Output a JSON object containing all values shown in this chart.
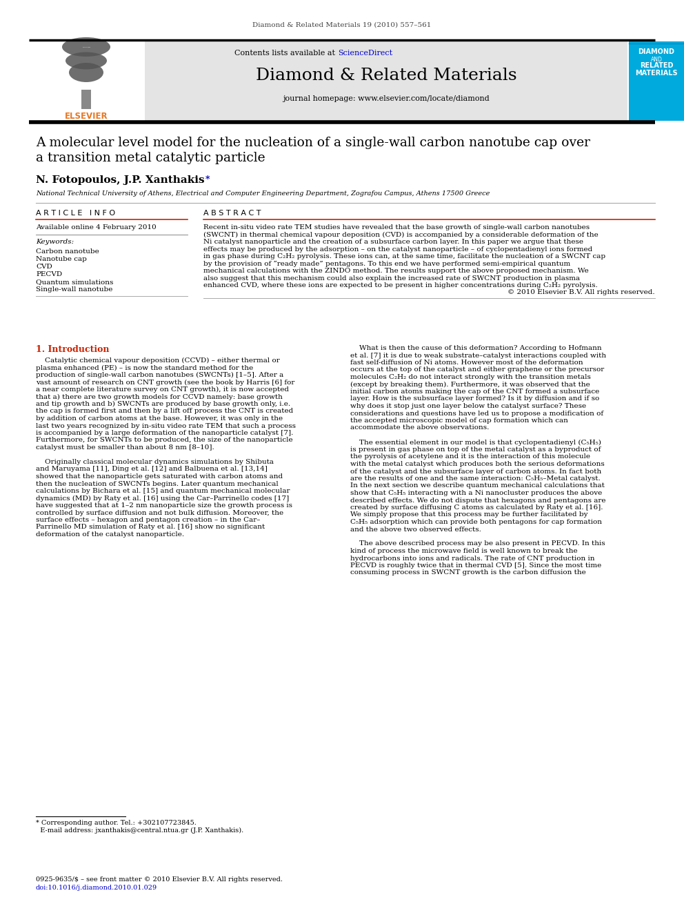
{
  "page_header": "Diamond & Related Materials 19 (2010) 557–561",
  "journal_name": "Diamond & Related Materials",
  "journal_url": "journal homepage: www.elsevier.com/locate/diamond",
  "contents_line": "Contents lists available at ScienceDirect",
  "paper_title_line1": "A molecular level model for the nucleation of a single-wall carbon nanotube cap over",
  "paper_title_line2": "a transition metal catalytic particle",
  "authors_main": "N. Fotopoulos, J.P. Xanthakis ",
  "authors_star": "*",
  "affiliation": "National Technical University of Athens, Electrical and Computer Engineering Department, Zografou Campus, Athens 17500 Greece",
  "article_info_header": "A R T I C L E   I N F O",
  "available_online": "Available online 4 February 2010",
  "keywords_header": "Keywords:",
  "keywords": [
    "Carbon nanotube",
    "Nanotube cap",
    "CVD",
    "PECVD",
    "Quantum simulations",
    "Single-wall nanotube"
  ],
  "abstract_header": "A B S T R A C T",
  "section1_title": "1. Introduction",
  "footnote_line1": "* Corresponding author. Tel.: +302107723845.",
  "footnote_line2": "  E-mail address: jxanthakis@central.ntua.gr (J.P. Xanthakis).",
  "footer_line1": "0925-9635/$ – see front matter © 2010 Elsevier B.V. All rights reserved.",
  "footer_line2": "doi:10.1016/j.diamond.2010.01.029",
  "bg_color": "#ffffff",
  "header_bg": "#e4e4e4",
  "diamond_bg_top": "#00b4e6",
  "diamond_bg_bot": "#007ab8",
  "link_color": "#0000cc",
  "section_color": "#cc2200",
  "elsevier_color": "#e87722"
}
